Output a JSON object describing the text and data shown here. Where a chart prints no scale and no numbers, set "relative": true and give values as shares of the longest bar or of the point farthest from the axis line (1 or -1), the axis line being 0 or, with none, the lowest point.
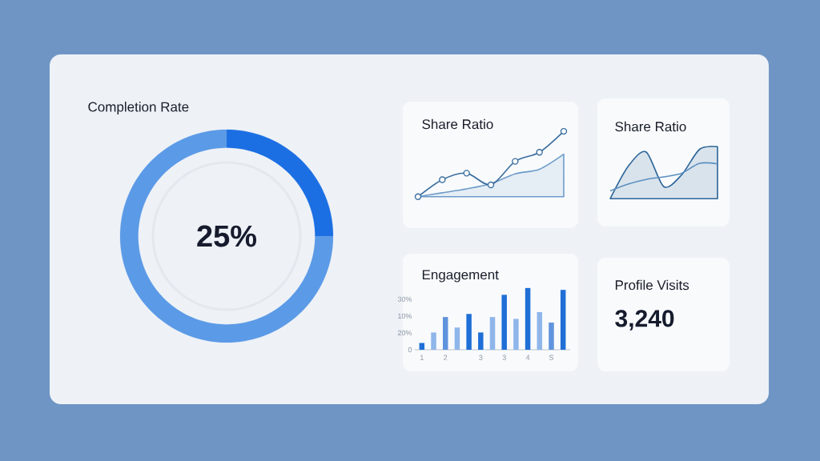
{
  "chart_data": [
    {
      "type": "donut",
      "title": "Completion Rate",
      "categories": [
        null,
        null
      ],
      "values": [
        25,
        75
      ],
      "colors": [
        "#1c6fe3",
        "#5b9ae6"
      ],
      "value_labels": [
        "25%",
        null
      ]
    },
    {
      "type": "line",
      "title": "Share Ratio",
      "relative": true,
      "categories": [
        null,
        null,
        null,
        null,
        null,
        null,
        null
      ],
      "series": [
        {
          "color": "#3b6e9e",
          "marker": "circle",
          "values": [
            0,
            0.26,
            0.36,
            0.18,
            0.54,
            0.68,
            1
          ]
        },
        {
          "type": "area",
          "color": "#6e9cc9",
          "values": [
            0,
            0.06,
            0.12,
            0.2,
            0.35,
            0.42,
            0.65
          ]
        }
      ]
    },
    {
      "type": "line",
      "title": "Share Ratio",
      "relative": true,
      "categories": [
        null,
        null,
        null,
        null,
        null,
        null,
        null
      ],
      "series": [
        {
          "type": "area",
          "color": "#2d6597",
          "values": [
            0,
            0.62,
            0.9,
            0.23,
            0.46,
            0.95,
            1
          ]
        },
        {
          "color": "#5a8fc0",
          "values": [
            0.15,
            0.28,
            0.37,
            0.42,
            0.49,
            0.68,
            0.67
          ]
        }
      ]
    },
    {
      "type": "bar",
      "title": "Engagement",
      "categories": [
        "1",
        null,
        "2",
        null,
        null,
        "3",
        null,
        "3",
        null,
        "4",
        null,
        "S",
        null
      ],
      "relative": true,
      "values": [
        0.11,
        0.28,
        0.53,
        0.36,
        0.58,
        0.28,
        0.53,
        0.89,
        0.5,
        1,
        0.61,
        0.44,
        0.97
      ],
      "colors": [
        "#1f6fd6",
        "#8fb6ea",
        "#5f93dc",
        "#8fb6ea",
        "#1f6fd6",
        "#1f6fd6",
        "#8fb6ea",
        "#1f6fd6",
        "#8fb6ea",
        "#1f6fd6",
        "#8fb6ea",
        "#5f93dc",
        "#1f6fd6"
      ],
      "annotations": [
        "30%",
        "10%",
        "20%",
        "0"
      ]
    },
    {
      "type": "other",
      "title": "Profile Visits",
      "annotations": [
        "3,240"
      ]
    }
  ]
}
